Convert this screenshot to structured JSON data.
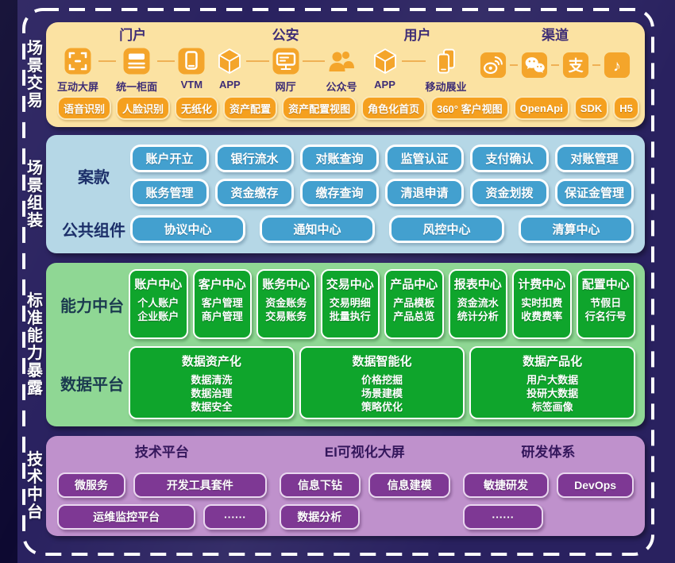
{
  "side_labels": [
    "场景交易",
    "场景组装",
    "标准能力暴露",
    "技术中台"
  ],
  "scene_trade": {
    "groups": [
      {
        "title": "门户",
        "items": [
          {
            "icon": "interactive-screen",
            "label": "互动大屏"
          },
          {
            "icon": "unified-counter",
            "label": "统一柜面"
          },
          {
            "icon": "vtm-tablet",
            "label": "VTM"
          }
        ]
      },
      {
        "title": "公安",
        "items": [
          {
            "icon": "app-cube",
            "label": "APP"
          },
          {
            "icon": "web-hall-monitor",
            "label": "网厅"
          },
          {
            "icon": "official-account-people",
            "label": "公众号"
          }
        ]
      },
      {
        "title": "用户",
        "items": [
          {
            "icon": "app-cube",
            "label": "APP"
          },
          {
            "icon": "mobile-phones",
            "label": "移动展业"
          }
        ]
      },
      {
        "title": "渠道",
        "items": [
          {
            "icon": "weibo",
            "label": ""
          },
          {
            "icon": "wechat",
            "label": ""
          },
          {
            "icon": "alipay",
            "label": ""
          },
          {
            "icon": "douyin",
            "label": ""
          }
        ]
      }
    ],
    "chips": [
      "语音识别",
      "人脸识别",
      "无纸化",
      "资产配置",
      "资产配置视图",
      "角色化首页",
      "360° 客户视图",
      "OpenApi",
      "SDK",
      "H5"
    ]
  },
  "scene_assembly": {
    "rows": [
      {
        "label": "案款",
        "chip_rows": [
          [
            "账户开立",
            "银行流水",
            "对账查询",
            "监管认证",
            "支付确认",
            "对账管理"
          ],
          [
            "账务管理",
            "资金缴存",
            "缴存查询",
            "清退申请",
            "资金划拨",
            "保证金管理"
          ]
        ]
      },
      {
        "label": "公共组件",
        "chip_rows": [
          [
            "协议中心",
            "通知中心",
            "风控中心",
            "清算中心"
          ]
        ]
      }
    ]
  },
  "capability_center": {
    "label": "能力中台",
    "cards": [
      {
        "title": "账户中心",
        "lines": [
          "个人账户",
          "企业账户"
        ]
      },
      {
        "title": "客户中心",
        "lines": [
          "客户管理",
          "商户管理"
        ]
      },
      {
        "title": "账务中心",
        "lines": [
          "资金账务",
          "交易账务"
        ]
      },
      {
        "title": "交易中心",
        "lines": [
          "交易明细",
          "批量执行"
        ]
      },
      {
        "title": "产品中心",
        "lines": [
          "产品模板",
          "产品总览"
        ]
      },
      {
        "title": "报表中心",
        "lines": [
          "资金流水",
          "统计分析"
        ]
      },
      {
        "title": "计费中心",
        "lines": [
          "实时扣费",
          "收费费率"
        ]
      },
      {
        "title": "配置中心",
        "lines": [
          "节假日",
          "行名行号"
        ]
      }
    ]
  },
  "data_platform": {
    "label": "数据平台",
    "cards": [
      {
        "title": "数据资产化",
        "lines": [
          "数据清洗",
          "数据治理",
          "数据安全"
        ]
      },
      {
        "title": "数据智能化",
        "lines": [
          "价格挖掘",
          "场景建模",
          "策略优化"
        ]
      },
      {
        "title": "数据产品化",
        "lines": [
          "用户大数据",
          "投研大数据",
          "标签画像"
        ]
      }
    ]
  },
  "tech_center": {
    "columns": [
      {
        "title": "技术平台",
        "rows": [
          [
            "微服务",
            "开发工具套件"
          ],
          [
            "运维监控平台",
            "······"
          ]
        ]
      },
      {
        "title": "EI可视化大屏",
        "rows": [
          [
            "信息下钻",
            "信息建模"
          ],
          [
            "数据分析"
          ]
        ]
      },
      {
        "title": "研发体系",
        "rows": [
          [
            "敏捷研发",
            "DevOps"
          ],
          [
            "······"
          ]
        ]
      }
    ]
  },
  "colors": {
    "background": "#29215f",
    "background_left": "#0d0931",
    "border_dash": "#ffffff",
    "s1_bg": "#fbe2a2",
    "s1_header": "#3e2d76",
    "icon_orange": "#f4a52b",
    "s1_chip_bg": "#f5a01f",
    "s1_chip_border": "#fbe7b6",
    "s2_bg": "#b5d7e6",
    "s2_label": "#1c2f69",
    "s2_chip_bg": "#43a0cf",
    "s3_bg": "#8fd794",
    "s3_label": "#1b3a4f",
    "s3_card_bg": "#0fa52c",
    "s4_bg": "#bf91cc",
    "s4_header": "#34175c",
    "s4_chip_bg": "#7e3894",
    "s4_chip_border": "#e9d7ef",
    "chip_text": "#ffffff"
  }
}
